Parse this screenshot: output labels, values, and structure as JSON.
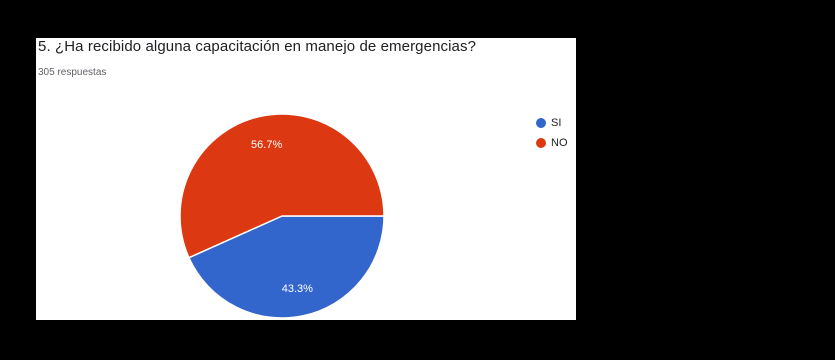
{
  "chart_data": {
    "type": "pie",
    "title": "5. ¿Ha recibido alguna capacitación en manejo de emergencias?",
    "subtitle": "305 respuestas",
    "legend_position": "right",
    "slices": [
      {
        "label": "SI",
        "value": 43.3,
        "display": "43.3%",
        "color": "#3366cc"
      },
      {
        "label": "NO",
        "value": 56.7,
        "display": "56.7%",
        "color": "#dc3912"
      }
    ]
  }
}
